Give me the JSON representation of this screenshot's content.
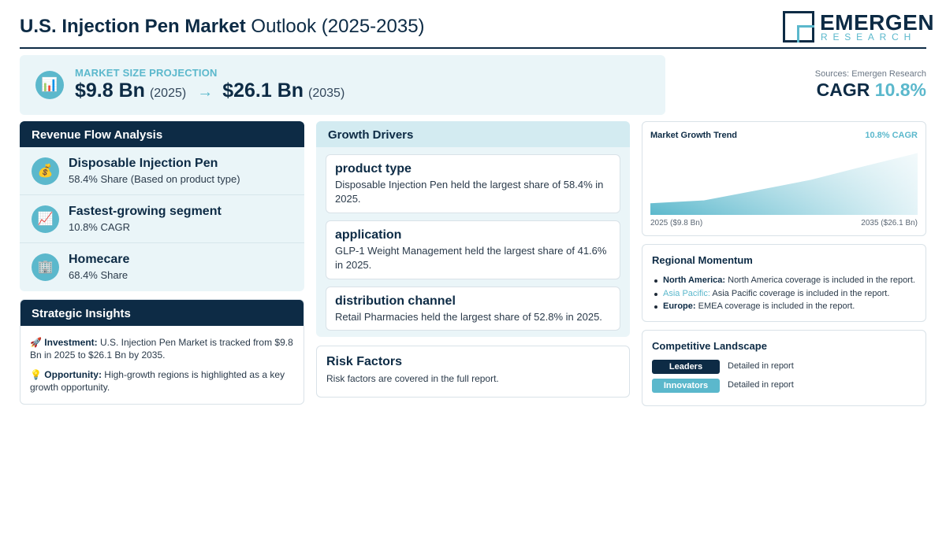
{
  "header": {
    "title_bold": "U.S. Injection Pen Market",
    "title_rest": " Outlook (2025-2035)",
    "logo_main": "EMERGEN",
    "logo_sub": "RESEARCH"
  },
  "banner": {
    "icon": "bar-chart-icon",
    "label": "MARKET SIZE PROJECTION",
    "start_value": "$9.8 Bn",
    "start_year": "(2025)",
    "arrow": "→",
    "end_value": "$26.1 Bn",
    "end_year": "(2035)"
  },
  "sources": "Sources: Emergen Research",
  "cagr": {
    "label": "CAGR",
    "value": "10.8%"
  },
  "revenue_flow": {
    "title": "Revenue Flow Analysis",
    "items": [
      {
        "icon": "money-bag-icon",
        "glyph": "💰",
        "title": "Disposable Injection Pen",
        "sub": "58.4% Share (Based on product type)"
      },
      {
        "icon": "trend-up-icon",
        "glyph": "📈",
        "title": "Fastest-growing segment",
        "sub": "10.8% CAGR"
      },
      {
        "icon": "building-icon",
        "glyph": "🏢",
        "title": "Homecare",
        "sub": "68.4% Share"
      }
    ]
  },
  "strategic": {
    "title": "Strategic Insights",
    "items": [
      {
        "icon": "rocket-icon",
        "glyph": "🚀",
        "label": "Investment:",
        "text": " U.S. Injection Pen Market is tracked from $9.8 Bn in 2025 to $26.1 Bn by 2035."
      },
      {
        "icon": "lightbulb-icon",
        "glyph": "💡",
        "label": "Opportunity:",
        "text": " High-growth regions is highlighted as a key growth opportunity."
      }
    ]
  },
  "drivers": {
    "title": "Growth Drivers",
    "items": [
      {
        "title": "product type",
        "desc": "Disposable Injection Pen held the largest share of 58.4% in 2025."
      },
      {
        "title": "application",
        "desc": "GLP-1 Weight Management held the largest share of 41.6% in 2025."
      },
      {
        "title": "distribution channel",
        "desc": "Retail Pharmacies held the largest share of 52.8% in 2025."
      }
    ]
  },
  "risk": {
    "title": "Risk Factors",
    "desc": "Risk factors are covered in the full report."
  },
  "trend": {
    "title": "Market Growth Trend",
    "cagr_label": "10.8% CAGR",
    "start_label": "2025 ($9.8 Bn)",
    "end_label": "2035 ($26.1 Bn)",
    "colors": {
      "fill_dark": "#5bb8cc",
      "fill_light": "#e3f3f7"
    }
  },
  "chart_data": {
    "type": "area",
    "x": [
      2025,
      2027,
      2029,
      2031,
      2033,
      2035
    ],
    "values": [
      9.8,
      10.7,
      14.0,
      17.4,
      21.8,
      26.1
    ],
    "title": "Market Growth Trend",
    "xlabel": "",
    "ylabel": "",
    "ylim": [
      6,
      27
    ],
    "grid": false
  },
  "regional": {
    "title": "Regional Momentum",
    "items": [
      {
        "label": "North America:",
        "text": " North America coverage is included in the report.",
        "accent": false
      },
      {
        "label": "Asia Pacific:",
        "text": " Asia Pacific coverage is included in the report.",
        "accent": true
      },
      {
        "label": "Europe:",
        "text": " EMEA coverage is included in the report.",
        "accent": false
      }
    ]
  },
  "competitive": {
    "title": "Competitive Landscape",
    "rows": [
      {
        "badge": "Leaders",
        "desc": "Detailed in report"
      },
      {
        "badge": "Innovators",
        "desc": "Detailed in report"
      }
    ]
  },
  "colors": {
    "navy": "#0d2b45",
    "teal": "#5bb8cc",
    "panel_bg": "#eaf5f8"
  }
}
